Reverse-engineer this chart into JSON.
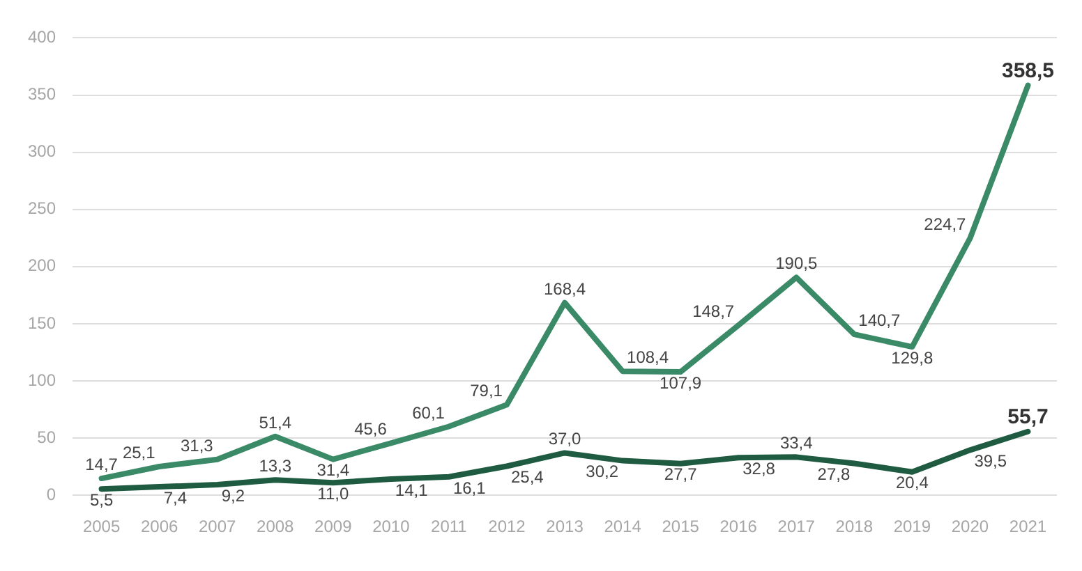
{
  "chart_data": {
    "type": "line",
    "categories": [
      "2005",
      "2006",
      "2007",
      "2008",
      "2009",
      "2010",
      "2011",
      "2012",
      "2013",
      "2014",
      "2015",
      "2016",
      "2017",
      "2018",
      "2019",
      "2020",
      "2021"
    ],
    "series": [
      {
        "color": "#3b8a67",
        "values": [
          14.7,
          25.1,
          31.3,
          51.4,
          31.4,
          45.6,
          60.1,
          79.1,
          168.4,
          108.4,
          107.9,
          148.7,
          190.5,
          140.7,
          129.8,
          224.7,
          358.5
        ],
        "value_labels": [
          "14,7",
          "25,1",
          "31,3",
          "51,4",
          "31,4",
          "45,6",
          "60,1",
          "79,1",
          "168,4",
          "108,4",
          "107,9",
          "148,7",
          "190,5",
          "140,7",
          "129,8",
          "224,7",
          "358,5"
        ]
      },
      {
        "color": "#1e5b40",
        "values": [
          5.5,
          7.4,
          9.2,
          13.3,
          11.0,
          14.1,
          16.1,
          25.4,
          37.0,
          30.2,
          27.7,
          32.8,
          33.4,
          27.8,
          20.4,
          39.5,
          55.7
        ],
        "value_labels": [
          "5,5",
          "7,4",
          "9,2",
          "13,3",
          "11,0",
          "14,1",
          "16,1",
          "25,4",
          "37,0",
          "30,2",
          "27,7",
          "32,8",
          "33,4",
          "27,8",
          "20,4",
          "39,5",
          "55,7"
        ]
      }
    ],
    "ylim": [
      0,
      400
    ],
    "yticks": [
      0,
      50,
      100,
      150,
      200,
      250,
      300,
      350,
      400
    ],
    "grid": "y",
    "legend": false,
    "marker": "none",
    "line_style": "solid"
  }
}
